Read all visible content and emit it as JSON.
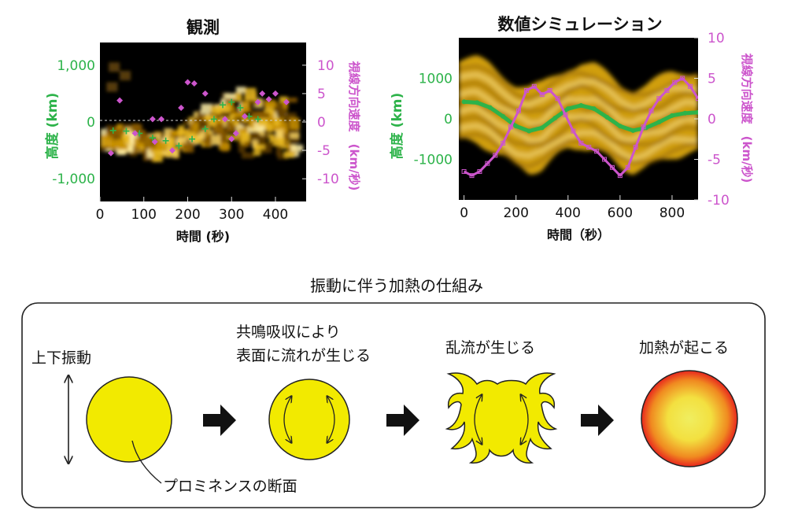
{
  "observation": {
    "title": "観測",
    "xlabel": "時間 (秒)",
    "ylabel_left": "高度 (km)",
    "ylabel_right": "視線方向速度　(km/秒)",
    "x_ticks": [
      "0",
      "100",
      "200",
      "300",
      "400"
    ],
    "y_left_ticks": [
      "1,000",
      "0",
      "-1,000"
    ],
    "y_right_ticks": [
      "10",
      "5",
      "0",
      "-5",
      "-10"
    ]
  },
  "simulation": {
    "title": "数値シミュレーション",
    "xlabel": "時間（秒）",
    "ylabel_left": "高度 (km)",
    "ylabel_right": "視線方向速度　(km/秒)",
    "x_ticks": [
      "0",
      "200",
      "400",
      "600",
      "800"
    ],
    "y_left_ticks": [
      "1000",
      "0",
      "-1000"
    ],
    "y_right_ticks": [
      "10",
      "5",
      "0",
      "-5",
      "-10"
    ]
  },
  "mechanism": {
    "title": "振動に伴う加熱の仕組み",
    "step1_label": "上下振動",
    "step2_label_line1": "共鳴吸収により",
    "step2_label_line2": "表面に流れが生じる",
    "step3_label": "乱流が生じる",
    "step4_label": "加熱が起こる",
    "cross_section_label": "プロミネンスの断面"
  },
  "colors": {
    "height_series": "#2db34a",
    "velocity_series": "#cc55cc",
    "prominence": "#f2ea00",
    "plasma": "#f5c518",
    "heat_outer": "#e8261e",
    "heat_inner": "#f0ee60"
  },
  "chart_data": [
    {
      "type": "scatter",
      "title": "観測",
      "xlabel": "時間 (秒)",
      "ylabel": "高度 (km)",
      "y2label": "視線方向速度　(km/秒)",
      "xlim": [
        0,
        470
      ],
      "ylim": [
        -1400,
        1400
      ],
      "y2lim": [
        -14,
        14
      ],
      "series": [
        {
          "name": "高度 (km)",
          "axis": "left",
          "x": [
            30,
            60,
            90,
            120,
            150,
            180,
            210,
            240,
            260,
            280,
            300,
            320,
            340,
            360
          ],
          "y": [
            -150,
            -160,
            -200,
            -280,
            -330,
            -420,
            -300,
            -120,
            50,
            300,
            350,
            250,
            100,
            50
          ]
        },
        {
          "name": "視線方向速度　(km/秒)",
          "axis": "right",
          "x": [
            25,
            45,
            80,
            120,
            125,
            140,
            165,
            185,
            200,
            215,
            240,
            285,
            300,
            310,
            330,
            360,
            370,
            385,
            400,
            425
          ],
          "y": [
            -5.5,
            3.8,
            -2.0,
            0.5,
            -3.5,
            0.5,
            -5.0,
            2.5,
            7.0,
            6.8,
            5.0,
            0.5,
            -3.0,
            -2.0,
            1.0,
            3.5,
            5.0,
            4.0,
            5.0,
            3.5
          ]
        }
      ]
    },
    {
      "type": "line",
      "title": "数値シミュレーション",
      "xlabel": "時間（秒）",
      "ylabel": "高度 (km)",
      "y2label": "視線方向速度　(km/秒)",
      "xlim": [
        -20,
        900
      ],
      "ylim": [
        -2000,
        2000
      ],
      "y2lim": [
        -10,
        10
      ],
      "series": [
        {
          "name": "高度 (km)",
          "axis": "left",
          "x": [
            0,
            50,
            100,
            150,
            200,
            250,
            300,
            350,
            400,
            450,
            500,
            550,
            600,
            650,
            700,
            750,
            800,
            850,
            900
          ],
          "y": [
            420,
            400,
            280,
            60,
            -180,
            -300,
            -220,
            20,
            250,
            330,
            250,
            40,
            -180,
            -290,
            -220,
            -80,
            80,
            140,
            160
          ]
        },
        {
          "name": "視線方向速度　(km/秒)",
          "axis": "right",
          "x": [
            0,
            30,
            60,
            90,
            120,
            150,
            180,
            210,
            240,
            270,
            300,
            330,
            360,
            390,
            420,
            450,
            480,
            510,
            540,
            570,
            600,
            630,
            660,
            690,
            720,
            750,
            780,
            810,
            840,
            870,
            900
          ],
          "y": [
            -6.5,
            -7.0,
            -6.5,
            -5.5,
            -4.5,
            -3.0,
            -1.0,
            1.0,
            3.5,
            4.0,
            3.0,
            3.5,
            2.5,
            0.5,
            -1.5,
            -3.0,
            -3.5,
            -4.0,
            -5.0,
            -6.0,
            -7.0,
            -6.0,
            -3.5,
            -1.0,
            1.0,
            2.5,
            3.5,
            4.5,
            5.0,
            4.0,
            2.5
          ]
        }
      ]
    }
  ]
}
